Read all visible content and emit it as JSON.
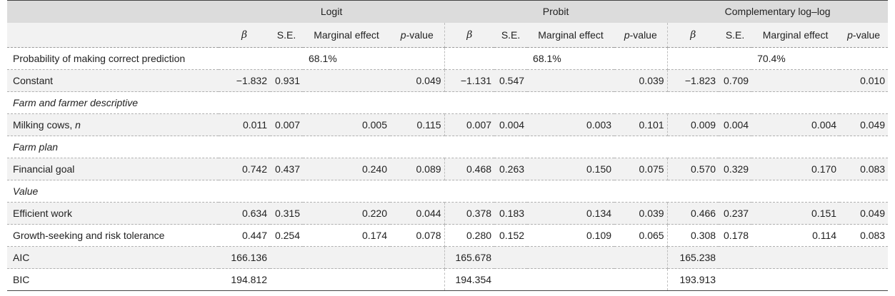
{
  "header": {
    "groups": [
      "Logit",
      "Probit",
      "Complementary log–log"
    ],
    "col_beta": "β",
    "col_se": "S.E.",
    "col_me": "Marginal effect",
    "col_p_italic": "p",
    "col_p_rest": "-value"
  },
  "rows": {
    "prob": {
      "label": "Probability of making correct prediction",
      "logit": "68.1%",
      "probit": "68.1%",
      "cloglog": "70.4%"
    },
    "constant": {
      "label": "Constant",
      "vals": [
        "−1.832",
        "0.931",
        "",
        "0.049",
        "−1.131",
        "0.547",
        "",
        "0.039",
        "−1.823",
        "0.709",
        "",
        "0.010"
      ]
    },
    "sec_farm": "Farm and farmer descriptive",
    "milking": {
      "label_main": "Milking cows, ",
      "label_it": "n",
      "vals": [
        "0.011",
        "0.007",
        "0.005",
        "0.115",
        "0.007",
        "0.004",
        "0.003",
        "0.101",
        "0.009",
        "0.004",
        "0.004",
        "0.049"
      ]
    },
    "sec_plan": "Farm plan",
    "financial": {
      "label": "Financial goal",
      "vals": [
        "0.742",
        "0.437",
        "0.240",
        "0.089",
        "0.468",
        "0.263",
        "0.150",
        "0.075",
        "0.570",
        "0.329",
        "0.170",
        "0.083"
      ]
    },
    "sec_value": "Value",
    "efficient": {
      "label": "Efficient work",
      "vals": [
        "0.634",
        "0.315",
        "0.220",
        "0.044",
        "0.378",
        "0.183",
        "0.134",
        "0.039",
        "0.466",
        "0.237",
        "0.151",
        "0.049"
      ]
    },
    "growth": {
      "label": "Growth-seeking and risk tolerance",
      "vals": [
        "0.447",
        "0.254",
        "0.174",
        "0.078",
        "0.280",
        "0.152",
        "0.109",
        "0.065",
        "0.308",
        "0.178",
        "0.114",
        "0.083"
      ]
    },
    "aic": {
      "label": "AIC",
      "logit": "166.136",
      "probit": "165.678",
      "cloglog": "165.238"
    },
    "bic": {
      "label": "BIC",
      "logit": "194.812",
      "probit": "194.354",
      "cloglog": "193.913"
    }
  }
}
